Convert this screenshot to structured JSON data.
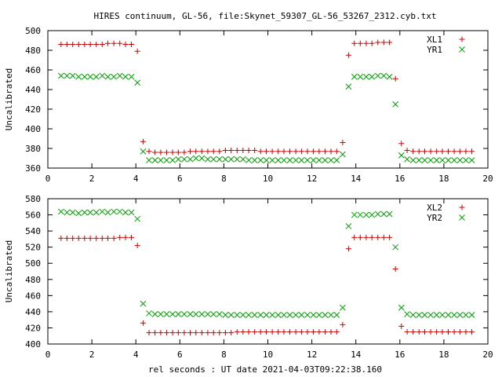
{
  "title": "HIRES continuum, GL-56, file:Skynet_59307_GL-56_53267_2312.cyb.txt",
  "xlabel": "rel seconds : UT date 2021-04-03T09:22:38.160",
  "chart_data": [
    {
      "type": "scatter",
      "ylabel": "Uncalibrated",
      "xlim": [
        0,
        20
      ],
      "ylim": [
        360,
        500
      ],
      "xticks": [
        0,
        2,
        4,
        6,
        8,
        10,
        12,
        14,
        16,
        18,
        20
      ],
      "yticks": [
        360,
        380,
        400,
        420,
        440,
        460,
        480,
        500
      ],
      "legend_position": "top-right",
      "series": [
        {
          "name": "XL1",
          "marker": "plus",
          "color": "#cc0000",
          "x": [
            0.6,
            0.87,
            1.13,
            1.4,
            1.67,
            1.93,
            2.2,
            2.47,
            2.73,
            3.0,
            3.27,
            3.53,
            3.8,
            4.07,
            4.33,
            4.6,
            4.87,
            5.13,
            5.4,
            5.67,
            5.93,
            6.2,
            6.47,
            6.73,
            7.0,
            7.27,
            7.53,
            7.8,
            8.07,
            8.33,
            8.6,
            8.87,
            9.13,
            9.4,
            9.67,
            9.93,
            10.2,
            10.47,
            10.73,
            11.0,
            11.27,
            11.53,
            11.8,
            12.07,
            12.33,
            12.6,
            12.87,
            13.13,
            13.4,
            13.67,
            13.93,
            14.2,
            14.47,
            14.73,
            15.0,
            15.27,
            15.53,
            15.8,
            16.07,
            16.33,
            16.6,
            16.87,
            17.13,
            17.4,
            17.67,
            17.93,
            18.2,
            18.47,
            18.73,
            19.0,
            19.27
          ],
          "y": [
            486,
            486,
            486,
            486,
            486,
            486,
            486,
            486,
            487,
            487,
            487,
            486,
            486,
            479,
            387,
            377,
            376,
            376,
            376,
            376,
            376,
            376,
            377,
            377,
            377,
            377,
            377,
            377,
            378,
            378,
            378,
            378,
            378,
            378,
            377,
            377,
            377,
            377,
            377,
            377,
            377,
            377,
            377,
            377,
            377,
            377,
            377,
            377,
            386,
            475,
            487,
            487,
            487,
            487,
            488,
            488,
            488,
            451,
            385,
            378,
            377,
            377,
            377,
            377,
            377,
            377,
            377,
            377,
            377,
            377,
            377
          ]
        },
        {
          "name": "YR1",
          "marker": "cross",
          "color": "#00a000",
          "x": [
            0.6,
            0.87,
            1.13,
            1.4,
            1.67,
            1.93,
            2.2,
            2.47,
            2.73,
            3.0,
            3.27,
            3.53,
            3.8,
            4.07,
            4.33,
            4.6,
            4.87,
            5.13,
            5.4,
            5.67,
            5.93,
            6.2,
            6.47,
            6.73,
            7.0,
            7.27,
            7.53,
            7.8,
            8.07,
            8.33,
            8.6,
            8.87,
            9.13,
            9.4,
            9.67,
            9.93,
            10.2,
            10.47,
            10.73,
            11.0,
            11.27,
            11.53,
            11.8,
            12.07,
            12.33,
            12.6,
            12.87,
            13.13,
            13.4,
            13.67,
            13.93,
            14.2,
            14.47,
            14.73,
            15.0,
            15.27,
            15.53,
            15.8,
            16.07,
            16.33,
            16.6,
            16.87,
            17.13,
            17.4,
            17.67,
            17.93,
            18.2,
            18.47,
            18.73,
            19.0,
            19.27
          ],
          "y": [
            454,
            454,
            454,
            453,
            453,
            453,
            453,
            454,
            453,
            453,
            454,
            453,
            453,
            447,
            377,
            368,
            368,
            368,
            368,
            368,
            369,
            369,
            369,
            370,
            370,
            369,
            369,
            369,
            369,
            369,
            369,
            369,
            368,
            368,
            368,
            368,
            368,
            368,
            368,
            368,
            368,
            368,
            368,
            368,
            368,
            368,
            368,
            368,
            374,
            443,
            453,
            453,
            453,
            453,
            454,
            454,
            453,
            425,
            373,
            369,
            368,
            368,
            368,
            368,
            368,
            368,
            368,
            368,
            368,
            368,
            368
          ]
        }
      ]
    },
    {
      "type": "scatter",
      "ylabel": "Uncalibrated",
      "xlim": [
        0,
        20
      ],
      "ylim": [
        400,
        580
      ],
      "xticks": [
        0,
        2,
        4,
        6,
        8,
        10,
        12,
        14,
        16,
        18,
        20
      ],
      "yticks": [
        400,
        420,
        440,
        460,
        480,
        500,
        520,
        540,
        560,
        580
      ],
      "legend_position": "top-right",
      "series": [
        {
          "name": "XL2",
          "marker": "plus",
          "color": "#cc0000",
          "x": [
            0.6,
            0.87,
            1.13,
            1.4,
            1.67,
            1.93,
            2.2,
            2.47,
            2.73,
            3.0,
            3.27,
            3.53,
            3.8,
            4.07,
            4.33,
            4.6,
            4.87,
            5.13,
            5.4,
            5.67,
            5.93,
            6.2,
            6.47,
            6.73,
            7.0,
            7.27,
            7.53,
            7.8,
            8.07,
            8.33,
            8.6,
            8.87,
            9.13,
            9.4,
            9.67,
            9.93,
            10.2,
            10.47,
            10.73,
            11.0,
            11.27,
            11.53,
            11.8,
            12.07,
            12.33,
            12.6,
            12.87,
            13.13,
            13.4,
            13.67,
            13.93,
            14.2,
            14.47,
            14.73,
            15.0,
            15.27,
            15.53,
            15.8,
            16.07,
            16.33,
            16.6,
            16.87,
            17.13,
            17.4,
            17.67,
            17.93,
            18.2,
            18.47,
            18.73,
            19.0,
            19.27
          ],
          "y": [
            531,
            531,
            531,
            531,
            531,
            531,
            531,
            531,
            531,
            531,
            532,
            532,
            532,
            522,
            426,
            414,
            414,
            414,
            414,
            414,
            414,
            414,
            414,
            414,
            414,
            414,
            414,
            414,
            414,
            414,
            415,
            415,
            415,
            415,
            415,
            415,
            415,
            415,
            415,
            415,
            415,
            415,
            415,
            415,
            415,
            415,
            415,
            415,
            424,
            518,
            532,
            532,
            532,
            532,
            532,
            532,
            532,
            493,
            422,
            415,
            415,
            415,
            415,
            415,
            415,
            415,
            415,
            415,
            415,
            415,
            415
          ]
        },
        {
          "name": "YR2",
          "marker": "cross",
          "color": "#00a000",
          "x": [
            0.6,
            0.87,
            1.13,
            1.4,
            1.67,
            1.93,
            2.2,
            2.47,
            2.73,
            3.0,
            3.27,
            3.53,
            3.8,
            4.07,
            4.33,
            4.6,
            4.87,
            5.13,
            5.4,
            5.67,
            5.93,
            6.2,
            6.47,
            6.73,
            7.0,
            7.27,
            7.53,
            7.8,
            8.07,
            8.33,
            8.6,
            8.87,
            9.13,
            9.4,
            9.67,
            9.93,
            10.2,
            10.47,
            10.73,
            11.0,
            11.27,
            11.53,
            11.8,
            12.07,
            12.33,
            12.6,
            12.87,
            13.13,
            13.4,
            13.67,
            13.93,
            14.2,
            14.47,
            14.73,
            15.0,
            15.27,
            15.53,
            15.8,
            16.07,
            16.33,
            16.6,
            16.87,
            17.13,
            17.4,
            17.67,
            17.93,
            18.2,
            18.47,
            18.73,
            19.0,
            19.27
          ],
          "y": [
            564,
            563,
            563,
            562,
            563,
            563,
            563,
            564,
            563,
            564,
            564,
            563,
            563,
            555,
            450,
            438,
            437,
            437,
            437,
            437,
            437,
            437,
            437,
            437,
            437,
            437,
            437,
            437,
            436,
            436,
            436,
            436,
            436,
            436,
            436,
            436,
            436,
            436,
            436,
            436,
            436,
            436,
            436,
            436,
            436,
            436,
            436,
            436,
            445,
            546,
            560,
            560,
            560,
            560,
            561,
            561,
            561,
            520,
            445,
            437,
            436,
            436,
            436,
            436,
            436,
            436,
            436,
            436,
            436,
            436,
            436
          ]
        }
      ]
    }
  ]
}
